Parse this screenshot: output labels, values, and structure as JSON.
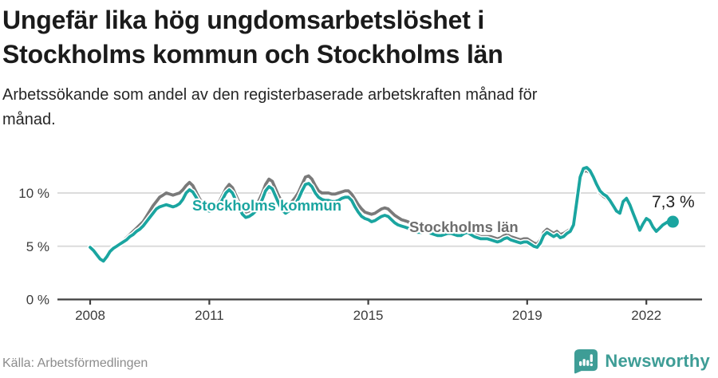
{
  "header": {
    "title_line1": "Ungefär lika hög ungdomsarbetslöshet i",
    "title_line2": "Stockholms kommun och Stockholms län",
    "subtitle_line1": "Arbetssökande som andel av den registerbaserade arbetskraften månad för",
    "subtitle_line2": "månad."
  },
  "footer": {
    "source": "Källa: Arbetsförmedlingen",
    "brand_name": "Newsworthy",
    "brand_icon": "newsworthy-speech-bubble-bar-chart"
  },
  "colors": {
    "kommun": "#1aa5a0",
    "lan_line": "#7a7a7a",
    "lan_label": "#6e6e6e",
    "axis": "#3f3f3f",
    "grid": "#dcdcdc",
    "tick_text": "#3c3c3c",
    "annotation": "#1f1f1f",
    "brand": "#3e9d96"
  },
  "chart_data": {
    "type": "line",
    "title": "Ungefär lika hög ungdomsarbetslöshet i Stockholms kommun och Stockholms län",
    "xlabel": "",
    "ylabel": "",
    "frequency": "monthly",
    "start": "2008-01",
    "end": "2022-09",
    "x_ticks": [
      2008,
      2011,
      2015,
      2019,
      2022
    ],
    "x_tick_labels": [
      "2008",
      "2011",
      "2015",
      "2019",
      "2022"
    ],
    "y_ticks": [
      0,
      5,
      10
    ],
    "y_tick_labels": [
      "0 %",
      "5 %",
      "10 %"
    ],
    "ylim": [
      0,
      13.3
    ],
    "grid": "horizontal",
    "legend_position": "inline-labels",
    "end_label": "7,3 %",
    "end_value": 7.3,
    "series": [
      {
        "name": "Stockholms län",
        "color_key": "lan_line",
        "label_color_key": "lan_label",
        "values": [
          4.9,
          4.6,
          4.3,
          3.9,
          3.7,
          4.1,
          4.6,
          4.9,
          5.1,
          5.3,
          5.5,
          5.8,
          6.1,
          6.4,
          6.7,
          7.0,
          7.3,
          7.8,
          8.3,
          8.8,
          9.2,
          9.6,
          9.8,
          10.0,
          9.9,
          9.8,
          9.9,
          10.0,
          10.3,
          10.7,
          11.0,
          10.7,
          10.1,
          9.5,
          9.0,
          8.7,
          8.6,
          8.7,
          8.9,
          9.2,
          9.8,
          10.4,
          10.8,
          10.5,
          9.8,
          9.1,
          8.5,
          8.2,
          8.3,
          8.5,
          8.8,
          9.3,
          10.0,
          10.8,
          11.3,
          11.1,
          10.4,
          9.7,
          9.1,
          8.7,
          8.9,
          9.2,
          9.6,
          10.1,
          10.8,
          11.5,
          11.6,
          11.3,
          10.7,
          10.2,
          10.0,
          10.0,
          10.0,
          9.9,
          9.9,
          10.0,
          10.1,
          10.2,
          10.2,
          9.9,
          9.4,
          8.9,
          8.5,
          8.2,
          8.1,
          8.0,
          8.1,
          8.3,
          8.5,
          8.6,
          8.5,
          8.2,
          7.9,
          7.7,
          7.5,
          7.4,
          7.3,
          7.1,
          7.0,
          6.9,
          6.9,
          7.0,
          7.0,
          6.8,
          6.6,
          6.5,
          6.4,
          6.4,
          6.5,
          6.5,
          6.4,
          6.3,
          6.3,
          6.4,
          6.5,
          6.3,
          6.1,
          6.0,
          5.9,
          5.9,
          5.9,
          5.9,
          5.8,
          5.7,
          5.8,
          6.0,
          6.1,
          5.9,
          5.8,
          5.7,
          5.6,
          5.7,
          5.7,
          5.5,
          5.3,
          5.2,
          5.6,
          6.3,
          6.6,
          6.4,
          6.2,
          6.4,
          6.1,
          6.2,
          6.4,
          6.6,
          7.2,
          9.3,
          11.3,
          12.0,
          12.1,
          11.9,
          11.3,
          10.6,
          10.0,
          9.7,
          9.5,
          9.1,
          8.7,
          8.2,
          8.0,
          9.0,
          9.3,
          8.8,
          8.0,
          7.3,
          6.6,
          7.2,
          7.7,
          7.5,
          6.9,
          6.5,
          6.8,
          7.1,
          7.3,
          7.4,
          7.3
        ]
      },
      {
        "name": "Stockholms kommun",
        "color_key": "kommun",
        "label_color_key": "kommun",
        "values": [
          4.9,
          4.6,
          4.2,
          3.8,
          3.6,
          4.0,
          4.5,
          4.8,
          5.0,
          5.2,
          5.4,
          5.6,
          5.9,
          6.1,
          6.4,
          6.6,
          6.9,
          7.3,
          7.7,
          8.1,
          8.5,
          8.7,
          8.8,
          8.9,
          8.8,
          8.7,
          8.8,
          9.0,
          9.4,
          10.0,
          10.3,
          10.1,
          9.6,
          9.1,
          8.7,
          8.4,
          8.3,
          8.4,
          8.6,
          8.9,
          9.4,
          10.0,
          10.3,
          10.0,
          9.3,
          8.6,
          8.0,
          7.7,
          7.8,
          8.0,
          8.3,
          8.8,
          9.4,
          10.2,
          10.6,
          10.4,
          9.7,
          9.0,
          8.4,
          8.1,
          8.3,
          8.6,
          9.0,
          9.5,
          10.2,
          10.8,
          10.9,
          10.6,
          10.0,
          9.6,
          9.4,
          9.3,
          9.3,
          9.2,
          9.2,
          9.3,
          9.5,
          9.6,
          9.6,
          9.3,
          8.7,
          8.2,
          7.8,
          7.6,
          7.5,
          7.3,
          7.4,
          7.6,
          7.8,
          7.9,
          7.8,
          7.5,
          7.2,
          7.0,
          6.9,
          6.8,
          6.7,
          6.5,
          6.4,
          6.3,
          6.3,
          6.4,
          6.4,
          6.2,
          6.1,
          6.0,
          6.0,
          6.1,
          6.2,
          6.2,
          6.1,
          6.0,
          6.0,
          6.2,
          6.3,
          6.1,
          5.9,
          5.8,
          5.7,
          5.7,
          5.7,
          5.6,
          5.5,
          5.4,
          5.5,
          5.7,
          5.8,
          5.6,
          5.5,
          5.4,
          5.3,
          5.4,
          5.4,
          5.2,
          5.0,
          4.9,
          5.3,
          6.0,
          6.3,
          6.1,
          5.9,
          6.1,
          5.8,
          5.9,
          6.2,
          6.4,
          7.0,
          9.2,
          11.5,
          12.3,
          12.4,
          12.1,
          11.5,
          10.8,
          10.2,
          9.9,
          9.7,
          9.3,
          8.8,
          8.3,
          8.1,
          9.2,
          9.5,
          8.9,
          8.1,
          7.3,
          6.5,
          7.1,
          7.6,
          7.4,
          6.8,
          6.4,
          6.7,
          7.0,
          7.2,
          7.4,
          7.3
        ]
      }
    ]
  }
}
